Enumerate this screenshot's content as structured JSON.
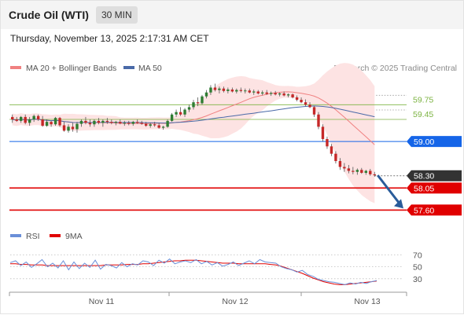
{
  "header": {
    "title": "Crude Oil (WTI)",
    "interval": "30 MIN"
  },
  "datetime": "Thursday, November 13, 2025 2:17:31 AM CET",
  "legend": {
    "bollinger": "MA 20 + Bollinger Bands",
    "ma50": "MA 50",
    "research": "Research © 2025 Trading Central"
  },
  "colors": {
    "up": "#2e7d32",
    "down": "#c62828",
    "bands": "#fde3e3",
    "ma20": "#f08080",
    "ma50": "#4a6aa8",
    "support": "#e00000",
    "pivot": "#1565e8",
    "resistance": "#7cb342",
    "rsi": "#6a8fd8",
    "rsi_ma": "#e00000",
    "current": "#333333"
  },
  "rsi_legend": {
    "rsi": "RSI",
    "ma": "9MA"
  },
  "chart_data": [
    {
      "type": "candlestick",
      "series_names": [
        "MA 20 + Bollinger Bands",
        "MA 50"
      ],
      "x_labels": [
        "Nov 11",
        "Nov 12",
        "Nov 13"
      ],
      "ylim": [
        57.35,
        60.3
      ],
      "ohlc": [
        [
          59.5,
          59.55,
          59.38,
          59.45
        ],
        [
          59.45,
          59.5,
          59.4,
          59.42
        ],
        [
          59.42,
          59.52,
          59.38,
          59.5
        ],
        [
          59.5,
          59.55,
          59.35,
          59.38
        ],
        [
          59.38,
          59.5,
          59.32,
          59.45
        ],
        [
          59.45,
          59.55,
          59.4,
          59.52
        ],
        [
          59.52,
          59.55,
          59.42,
          59.45
        ],
        [
          59.45,
          59.52,
          59.3,
          59.32
        ],
        [
          59.32,
          59.45,
          59.3,
          59.4
        ],
        [
          59.4,
          59.42,
          59.3,
          59.35
        ],
        [
          59.35,
          59.5,
          59.32,
          59.48
        ],
        [
          59.48,
          59.5,
          59.3,
          59.33
        ],
        [
          59.33,
          59.4,
          59.2,
          59.22
        ],
        [
          59.22,
          59.35,
          59.18,
          59.3
        ],
        [
          59.3,
          59.38,
          59.2,
          59.25
        ],
        [
          59.25,
          59.4,
          59.18,
          59.36
        ],
        [
          59.36,
          59.45,
          59.3,
          59.42
        ],
        [
          59.42,
          59.5,
          59.35,
          59.38
        ],
        [
          59.38,
          59.45,
          59.3,
          59.35
        ],
        [
          59.35,
          59.45,
          59.3,
          59.42
        ],
        [
          59.42,
          59.48,
          59.35,
          59.38
        ],
        [
          59.38,
          59.45,
          59.3,
          59.42
        ],
        [
          59.42,
          59.48,
          59.36,
          59.4
        ],
        [
          59.4,
          59.45,
          59.35,
          59.38
        ],
        [
          59.38,
          59.42,
          59.33,
          59.4
        ],
        [
          59.4,
          59.45,
          59.35,
          59.37
        ],
        [
          59.37,
          59.42,
          59.32,
          59.38
        ],
        [
          59.38,
          59.42,
          59.33,
          59.36
        ],
        [
          59.36,
          59.42,
          59.32,
          59.4
        ],
        [
          59.4,
          59.45,
          59.36,
          59.38
        ],
        [
          59.38,
          59.42,
          59.34,
          59.36
        ],
        [
          59.36,
          59.4,
          59.3,
          59.32
        ],
        [
          59.32,
          59.38,
          59.28,
          59.35
        ],
        [
          59.35,
          59.4,
          59.3,
          59.33
        ],
        [
          59.33,
          59.38,
          59.26,
          59.28
        ],
        [
          59.28,
          59.32,
          59.24,
          59.3
        ],
        [
          59.3,
          59.45,
          59.28,
          59.42
        ],
        [
          59.42,
          59.58,
          59.4,
          59.55
        ],
        [
          59.55,
          59.65,
          59.5,
          59.6
        ],
        [
          59.6,
          59.7,
          59.52,
          59.55
        ],
        [
          59.55,
          59.68,
          59.5,
          59.65
        ],
        [
          59.65,
          59.75,
          59.6,
          59.7
        ],
        [
          59.7,
          59.85,
          59.65,
          59.8
        ],
        [
          59.8,
          59.9,
          59.72,
          59.78
        ],
        [
          59.78,
          59.95,
          59.75,
          59.92
        ],
        [
          59.92,
          60.05,
          59.88,
          60.0
        ],
        [
          60.0,
          60.15,
          59.95,
          60.1
        ],
        [
          60.1,
          60.18,
          60.02,
          60.05
        ],
        [
          60.05,
          60.12,
          59.98,
          60.08
        ],
        [
          60.08,
          60.12,
          60.0,
          60.03
        ],
        [
          60.03,
          60.1,
          59.98,
          60.06
        ],
        [
          60.06,
          60.1,
          60.0,
          60.02
        ],
        [
          60.02,
          60.08,
          59.98,
          60.05
        ],
        [
          60.05,
          60.1,
          60.0,
          60.03
        ],
        [
          60.03,
          60.08,
          59.98,
          60.04
        ],
        [
          60.04,
          60.08,
          59.98,
          60.0
        ],
        [
          60.0,
          60.06,
          59.95,
          60.02
        ],
        [
          60.02,
          60.05,
          59.96,
          59.98
        ],
        [
          59.98,
          60.04,
          59.94,
          60.0
        ],
        [
          60.0,
          60.05,
          59.95,
          59.97
        ],
        [
          59.97,
          60.02,
          59.93,
          59.99
        ],
        [
          59.99,
          60.03,
          59.94,
          59.96
        ],
        [
          59.96,
          60.0,
          59.92,
          59.98
        ],
        [
          59.98,
          60.02,
          59.92,
          59.94
        ],
        [
          59.94,
          59.98,
          59.9,
          59.96
        ],
        [
          59.96,
          59.98,
          59.88,
          59.9
        ],
        [
          59.9,
          59.94,
          59.82,
          59.85
        ],
        [
          59.85,
          59.9,
          59.78,
          59.8
        ],
        [
          59.8,
          59.86,
          59.72,
          59.75
        ],
        [
          59.75,
          59.8,
          59.68,
          59.7
        ],
        [
          59.7,
          59.72,
          59.5,
          59.55
        ],
        [
          59.55,
          59.6,
          59.25,
          59.3
        ],
        [
          59.3,
          59.35,
          59.0,
          59.05
        ],
        [
          59.05,
          59.1,
          58.85,
          58.9
        ],
        [
          58.9,
          58.95,
          58.7,
          58.75
        ],
        [
          58.75,
          58.8,
          58.55,
          58.6
        ],
        [
          58.6,
          58.66,
          58.42,
          58.48
        ],
        [
          58.48,
          58.56,
          58.38,
          58.45
        ],
        [
          58.45,
          58.52,
          58.35,
          58.4
        ],
        [
          58.4,
          58.48,
          58.33,
          58.38
        ],
        [
          58.38,
          58.45,
          58.32,
          58.42
        ],
        [
          58.42,
          58.46,
          58.34,
          58.36
        ],
        [
          58.36,
          58.42,
          58.32,
          58.4
        ],
        [
          58.4,
          58.44,
          58.3,
          58.33
        ],
        [
          58.33,
          58.38,
          58.28,
          58.31
        ]
      ],
      "levels": [
        {
          "label": "59.75",
          "value": 59.75,
          "kind": "resistance"
        },
        {
          "label": "59.45",
          "value": 59.45,
          "kind": "resistance"
        },
        {
          "label": "59.00",
          "value": 59.0,
          "kind": "pivot"
        },
        {
          "label": "58.30",
          "value": 58.3,
          "kind": "current"
        },
        {
          "label": "58.05",
          "value": 58.05,
          "kind": "support"
        },
        {
          "label": "57.60",
          "value": 57.6,
          "kind": "support"
        }
      ]
    },
    {
      "type": "line",
      "series_names": [
        "RSI",
        "9MA"
      ],
      "ylim": [
        10,
        85
      ],
      "y_ticks": [
        "70",
        "50",
        "30"
      ],
      "y_tick_values": [
        70,
        50,
        30
      ],
      "rsi": [
        57,
        60,
        52,
        58,
        49,
        55,
        62,
        50,
        56,
        48,
        60,
        45,
        58,
        47,
        56,
        49,
        61,
        46,
        54,
        52,
        48,
        57,
        50,
        55,
        53,
        60,
        58,
        52,
        61,
        56,
        63,
        55,
        58,
        60,
        57,
        62,
        55,
        59,
        53,
        57,
        51,
        54,
        58,
        52,
        56,
        60,
        55,
        62,
        58,
        57,
        56,
        50,
        47,
        45,
        41,
        44,
        37,
        34,
        29,
        27,
        25,
        24,
        22,
        20,
        23,
        21,
        24,
        22,
        25,
        27
      ],
      "ma": [
        55,
        55,
        54,
        54,
        53,
        53,
        53,
        52,
        52,
        52,
        52,
        52,
        52,
        52,
        52,
        52,
        52,
        52,
        53,
        53,
        53,
        53,
        54,
        54,
        54,
        55,
        55,
        56,
        57,
        58,
        59,
        60,
        60,
        61,
        61,
        61,
        60,
        59,
        58,
        57,
        56,
        56,
        56,
        55,
        55,
        55,
        55,
        55,
        55,
        54,
        53,
        51,
        48,
        45,
        42,
        39,
        35,
        31,
        28,
        25,
        23,
        21,
        20,
        20,
        21,
        22,
        23,
        24,
        25,
        26
      ]
    }
  ]
}
